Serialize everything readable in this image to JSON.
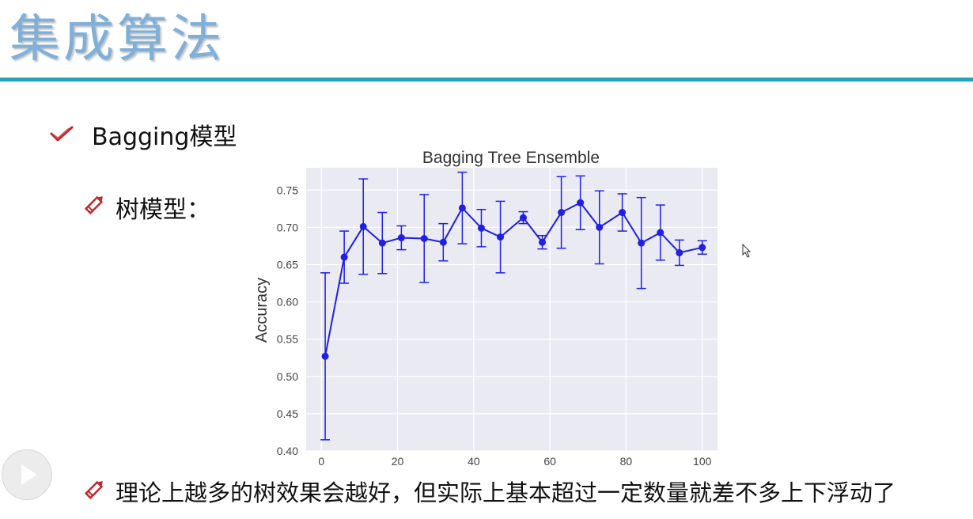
{
  "slide": {
    "title": "集成算法",
    "accent_color": "#1fa3b6",
    "bullets": [
      {
        "icon": "checkmark-icon",
        "text": "Bagging模型"
      },
      {
        "icon": "pencil-icon",
        "text": "树模型："
      },
      {
        "icon": "pencil-icon",
        "text": "理论上越多的树效果会越好，但实际上基本超过一定数量就差不多上下浮动了"
      }
    ]
  },
  "chart_data": {
    "type": "line",
    "title": "Bagging Tree Ensemble",
    "xlabel": "",
    "ylabel": "Accuracy",
    "xlim": [
      -4,
      104
    ],
    "ylim": [
      0.4,
      0.78
    ],
    "xticks": [
      "0",
      "20",
      "40",
      "60",
      "80",
      "100"
    ],
    "xtick_values": [
      0,
      20,
      40,
      60,
      80,
      100
    ],
    "yticks": [
      "0.40",
      "0.45",
      "0.50",
      "0.55",
      "0.60",
      "0.65",
      "0.70",
      "0.75"
    ],
    "ytick_values": [
      0.4,
      0.45,
      0.5,
      0.55,
      0.6,
      0.65,
      0.7,
      0.75
    ],
    "grid": true,
    "background": "#eaeaf2",
    "line_color": "#1f1fe6",
    "series": [
      {
        "x": [
          1,
          6,
          11,
          16,
          21,
          27,
          32,
          37,
          42,
          47,
          53,
          58,
          63,
          68,
          73,
          79,
          84,
          89,
          94,
          100
        ],
        "y": [
          0.527,
          0.66,
          0.701,
          0.679,
          0.686,
          0.685,
          0.68,
          0.726,
          0.699,
          0.687,
          0.713,
          0.68,
          0.72,
          0.733,
          0.7,
          0.72,
          0.679,
          0.693,
          0.666,
          0.673
        ],
        "err": [
          0.112,
          0.035,
          0.064,
          0.041,
          0.016,
          0.059,
          0.025,
          0.048,
          0.025,
          0.048,
          0.008,
          0.009,
          0.048,
          0.036,
          0.049,
          0.025,
          0.061,
          0.037,
          0.017,
          0.009
        ]
      }
    ]
  }
}
